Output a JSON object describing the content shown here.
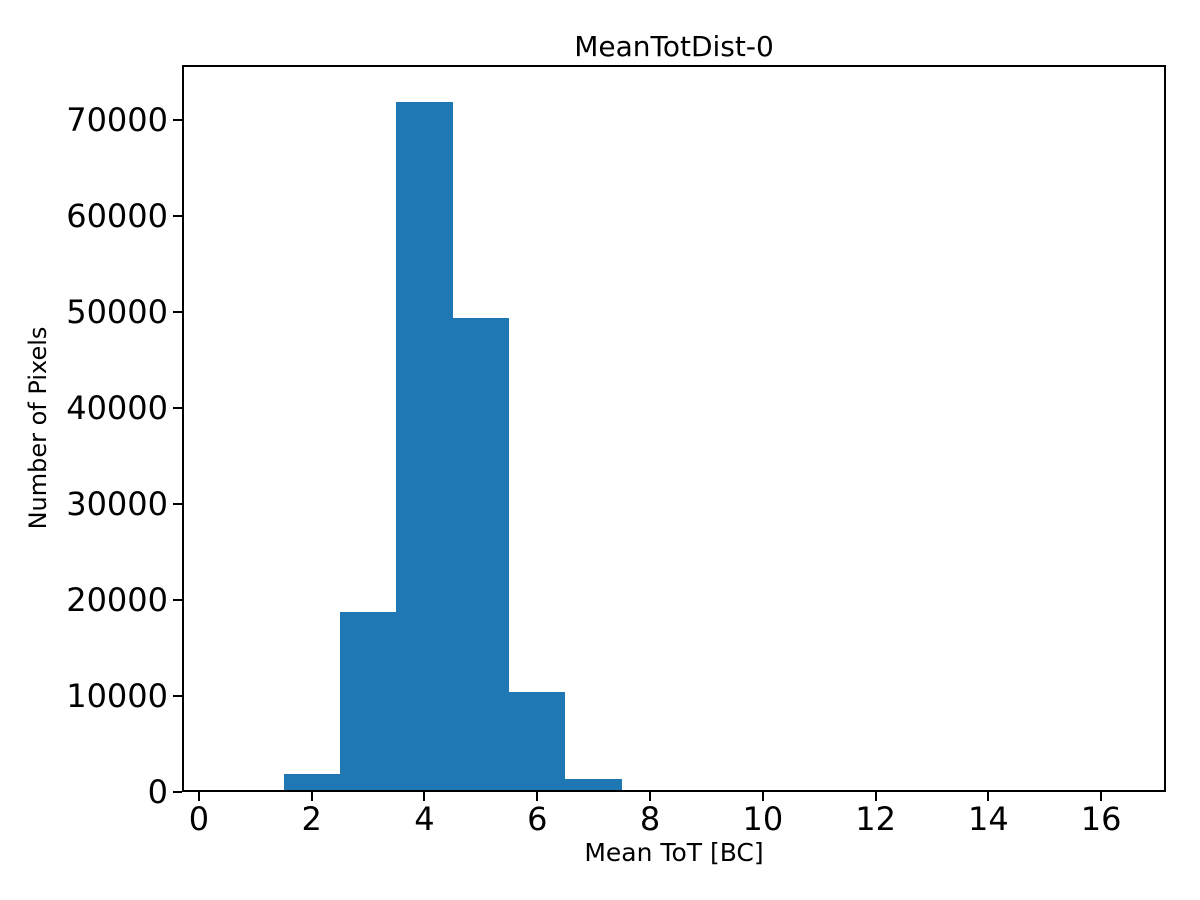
{
  "chart_data": {
    "type": "bar",
    "subtype": "histogram",
    "title": "MeanTotDist-0",
    "xlabel": "Mean ToT [BC]",
    "ylabel": "Number of Pixels",
    "bar_color": "#1f77b4",
    "bin_width": 1,
    "bin_centers": [
      1,
      2,
      3,
      4,
      5,
      6,
      7,
      8,
      9,
      10,
      11,
      12,
      13,
      14,
      15,
      16
    ],
    "values": [
      200,
      1900,
      18700,
      71800,
      49400,
      10400,
      1400,
      200,
      0,
      0,
      0,
      0,
      0,
      0,
      0,
      0
    ],
    "xlim": [
      -0.3,
      17.15
    ],
    "ylim": [
      0,
      75700
    ],
    "x_ticks": [
      0,
      2,
      4,
      6,
      8,
      10,
      12,
      14,
      16
    ],
    "y_ticks": [
      0,
      10000,
      20000,
      30000,
      40000,
      50000,
      60000,
      70000
    ],
    "grid": false,
    "legend": null
  }
}
